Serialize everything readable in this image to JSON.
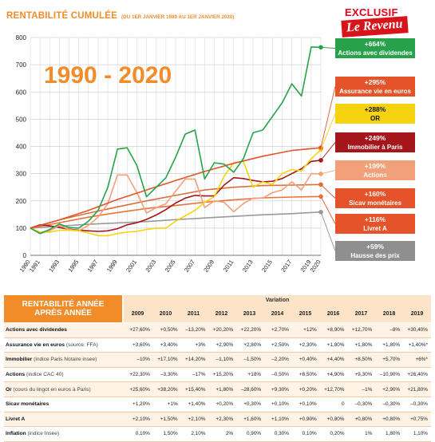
{
  "header": {
    "title": "RENTABILITÉ CUMULÉE",
    "subtitle": "(DU 1ER JANVIER 1989 AU 1ER JANVIER 2020)",
    "logo_top": "EXCLUSIF",
    "logo_bottom": "Le Revenu",
    "big_label": "1990 - 2020"
  },
  "chart_data": {
    "type": "line",
    "title": "RENTABILITÉ CUMULÉE",
    "ylim": [
      0,
      800
    ],
    "yticks": [
      0,
      100,
      200,
      300,
      400,
      500,
      600,
      700,
      800
    ],
    "xlim": [
      1990,
      2020
    ],
    "xticks": [
      1990,
      1991,
      1993,
      1995,
      1997,
      1999,
      2001,
      2003,
      2005,
      2007,
      2009,
      2011,
      2013,
      2015,
      2017,
      2019,
      2020
    ],
    "grid": true,
    "series": [
      {
        "name": "Actions avec dividendes",
        "value_label": "+664%",
        "color": "#27a24a",
        "label_bg": "#27a24a",
        "label_fg": "#ffffff",
        "x": [
          1990,
          1991,
          1992,
          1993,
          1994,
          1995,
          1996,
          1997,
          1998,
          1999,
          2000,
          2001,
          2002,
          2003,
          2004,
          2005,
          2006,
          2007,
          2008,
          2009,
          2010,
          2011,
          2012,
          2013,
          2014,
          2015,
          2016,
          2017,
          2018,
          2019,
          2020
        ],
        "y": [
          100,
          80,
          95,
          115,
          102,
          100,
          125,
          165,
          250,
          390,
          395,
          330,
          215,
          250,
          285,
          360,
          445,
          460,
          280,
          340,
          335,
          305,
          355,
          450,
          460,
          510,
          560,
          630,
          585,
          765,
          764
        ]
      },
      {
        "name": "Assurance vie en euros",
        "value_label": "+295%",
        "color": "#e4532a",
        "label_bg": "#e4532a",
        "label_fg": "#ffffff",
        "x": [
          1990,
          1993,
          1996,
          1999,
          2002,
          2005,
          2008,
          2011,
          2014,
          2017,
          2020
        ],
        "y": [
          100,
          130,
          165,
          205,
          240,
          275,
          308,
          338,
          364,
          385,
          395
        ]
      },
      {
        "name": "OR",
        "value_label": "+288%",
        "color": "#f5d40f",
        "label_bg": "#f5d40f",
        "label_fg": "#111111",
        "x": [
          1990,
          1991,
          1992,
          1993,
          1994,
          1995,
          1996,
          1997,
          1998,
          1999,
          2000,
          2001,
          2002,
          2003,
          2004,
          2005,
          2006,
          2007,
          2008,
          2009,
          2010,
          2011,
          2012,
          2013,
          2014,
          2015,
          2016,
          2017,
          2018,
          2019,
          2020
        ],
        "y": [
          100,
          85,
          85,
          92,
          92,
          90,
          82,
          72,
          72,
          80,
          85,
          88,
          95,
          100,
          100,
          125,
          145,
          165,
          195,
          215,
          290,
          340,
          345,
          250,
          270,
          260,
          300,
          315,
          310,
          355,
          388
        ]
      },
      {
        "name": "Immobilier à Paris",
        "value_label": "+249%",
        "color": "#a4161a",
        "label_bg": "#a4161a",
        "label_fg": "#ffffff",
        "x": [
          1990,
          1991,
          1992,
          1993,
          1994,
          1995,
          1996,
          1997,
          1998,
          1999,
          2000,
          2001,
          2002,
          2003,
          2004,
          2005,
          2006,
          2007,
          2008,
          2009,
          2010,
          2011,
          2012,
          2013,
          2014,
          2015,
          2016,
          2017,
          2018,
          2019,
          2020
        ],
        "y": [
          100,
          112,
          108,
          102,
          96,
          92,
          90,
          88,
          90,
          98,
          112,
          120,
          132,
          148,
          168,
          192,
          210,
          220,
          218,
          218,
          258,
          285,
          282,
          275,
          270,
          272,
          282,
          300,
          318,
          345,
          349
        ]
      },
      {
        "name": "Actions",
        "value_label": "+199%",
        "color": "#f2a07a",
        "label_bg": "#f2a07a",
        "label_fg": "#ffffff",
        "x": [
          1990,
          1991,
          1992,
          1993,
          1994,
          1995,
          1996,
          1997,
          1998,
          1999,
          2000,
          2001,
          2002,
          2003,
          2004,
          2005,
          2006,
          2007,
          2008,
          2009,
          2010,
          2011,
          2012,
          2013,
          2014,
          2015,
          2016,
          2017,
          2018,
          2019,
          2020
        ],
        "y": [
          100,
          80,
          90,
          110,
          95,
          90,
          110,
          140,
          190,
          295,
          295,
          230,
          155,
          175,
          190,
          235,
          280,
          280,
          175,
          200,
          195,
          160,
          190,
          210,
          210,
          230,
          240,
          270,
          240,
          300,
          299
        ]
      },
      {
        "name": "Sicav monétaires",
        "value_label": "+160%",
        "color": "#d9703a",
        "label_bg": "#e4532a",
        "label_fg": "#ffffff",
        "x": [
          1990,
          1993,
          1996,
          1999,
          2002,
          2005,
          2008,
          2011,
          2014,
          2017,
          2020
        ],
        "y": [
          100,
          130,
          155,
          178,
          200,
          220,
          240,
          250,
          256,
          258,
          260
        ]
      },
      {
        "name": "Livret A",
        "value_label": "+116%",
        "color": "#e8743a",
        "label_bg": "#e4532a",
        "label_fg": "#ffffff",
        "x": [
          1990,
          1993,
          1996,
          1999,
          2002,
          2005,
          2008,
          2011,
          2014,
          2017,
          2020
        ],
        "y": [
          100,
          120,
          140,
          157,
          172,
          183,
          195,
          204,
          211,
          214,
          216
        ]
      },
      {
        "name": "Hausse des prix",
        "value_label": "+59%",
        "color": "#9a9a9a",
        "label_bg": "#8f8f8f",
        "label_fg": "#ffffff",
        "x": [
          1990,
          1993,
          1996,
          1999,
          2002,
          2005,
          2008,
          2011,
          2014,
          2017,
          2020
        ],
        "y": [
          100,
          107,
          114,
          119,
          124,
          131,
          137,
          143,
          149,
          153,
          159
        ]
      }
    ]
  },
  "table": {
    "head_line1": "RENTABILITÉ ANNÉE",
    "head_line2": "APRÈS ANNÉE",
    "variation": "Variation",
    "years": [
      "2009",
      "2010",
      "2011",
      "2012",
      "2013",
      "2014",
      "2015",
      "2016",
      "2017",
      "2018",
      "2019"
    ],
    "rows": [
      {
        "label": "Actions avec dividendes",
        "note": "",
        "values": [
          "+27,60%",
          "+0,50%",
          "–13,20%",
          "+20,20%",
          "+22,20%",
          "+2,70%",
          "+12%",
          "+8,90%",
          "+12,70%",
          "–8%",
          "+30,40%"
        ]
      },
      {
        "label": "Assurance vie en euros",
        "note": "(source: FFA)",
        "values": [
          "+3,60%",
          "+3,40%",
          "+3%",
          "+2,90%",
          "+2,80%",
          "+2,50%",
          "+2,30%",
          "+1,80%",
          "+1,80%",
          "+1,80%",
          "+1,40%*"
        ]
      },
      {
        "label": "Immobilier",
        "note": "(indice Paris Notaire insee)",
        "values": [
          "–10%",
          "+17,10%",
          "+14,20%",
          "–1,10%",
          "–1,50%",
          "–2,20%",
          "+0,40%",
          "+4,40%",
          "+8,50%",
          "+5,70%",
          "+6%*"
        ]
      },
      {
        "label": "Actions",
        "note": "(indice CAC 40)",
        "values": [
          "+22,30%",
          "–3,30%",
          "–17%",
          "+15,20%",
          "+18%",
          "–0,50%",
          "+8,50%",
          "+4,90%",
          "+9,30%",
          "–10,90%",
          "+26,40%"
        ]
      },
      {
        "label": "Or",
        "note": "(cours du lingot en euros à Paris)",
        "values": [
          "+25,60%",
          "+38,20%",
          "+15,40%",
          "+1,80%",
          "–28,60%",
          "+9,30%",
          "+0,20%",
          "+12,70%",
          "–1%",
          "+2,90%",
          "+21,80%"
        ]
      },
      {
        "label": "Sicav monétaires",
        "note": "",
        "values": [
          "+1,20%",
          "+1%",
          "+1,40%",
          "+0,20%",
          "+0,30%",
          "+0,10%",
          "+0,10%",
          "0",
          "–0,30%",
          "–0,30%",
          "–0,30%"
        ]
      },
      {
        "label": "Livret A",
        "note": "",
        "values": [
          "+2,10%",
          "+1,50%",
          "+2,10%",
          "+2,30%",
          "+1,60%",
          "+1,10%",
          "+0,90%",
          "+0,80%",
          "+0,80%",
          "+0,80%",
          "+0,75%"
        ]
      },
      {
        "label": "Inflation",
        "note": "(indice Insee)",
        "values": [
          "0,10%",
          "1,50%",
          "2,10%",
          "2%",
          "0,90%",
          "0,30%",
          "0,10%",
          "0,20%",
          "1%",
          "1,80%",
          "1,10%"
        ]
      }
    ]
  }
}
